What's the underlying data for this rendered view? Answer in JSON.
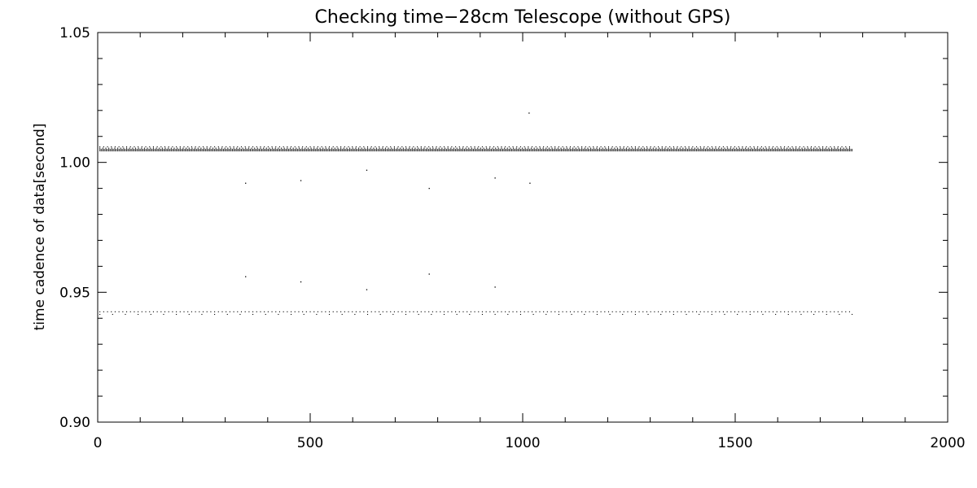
{
  "chart_data": {
    "type": "scatter",
    "title": "Checking time−28cm Telescope (without GPS)",
    "xlabel": "",
    "ylabel": "time cadence of data[second]",
    "xlim": [
      0,
      2000
    ],
    "ylim": [
      0.9,
      1.05
    ],
    "x_ticks": [
      0,
      500,
      1000,
      1500,
      2000
    ],
    "x_tick_labels": [
      "0",
      "500",
      "1000",
      "1500",
      "2000"
    ],
    "y_ticks": [
      0.9,
      0.95,
      1.0,
      1.05
    ],
    "y_tick_labels": [
      "0.90",
      "0.95",
      "1.00",
      "1.05"
    ],
    "grid": false,
    "legend": "none",
    "marker_color": "#000000",
    "series": [
      {
        "values_description": "points are listed below as x,y pairs",
        "bands": [
          {
            "y": 1.006,
            "x_start": 5,
            "x_end": 1775,
            "step": 9
          },
          {
            "y": 1.0055,
            "x_start": 5,
            "x_end": 1775,
            "step": 7
          },
          {
            "y": 1.005,
            "x_start": 5,
            "x_end": 1775,
            "step": 3
          },
          {
            "y": 1.0045,
            "x_start": 5,
            "x_end": 1775,
            "step": 3
          },
          {
            "y": 0.9425,
            "x_start": 5,
            "x_end": 1775,
            "step": 9
          },
          {
            "y": 0.9415,
            "x_start": 5,
            "x_end": 1775,
            "step": 30
          }
        ],
        "points": [
          [
            348,
            0.992
          ],
          [
            478,
            0.993
          ],
          [
            633,
            0.997
          ],
          [
            780,
            0.99
          ],
          [
            935,
            0.994
          ],
          [
            1015,
            1.019
          ],
          [
            1017,
            0.992
          ],
          [
            348,
            0.956
          ],
          [
            478,
            0.954
          ],
          [
            633,
            0.951
          ],
          [
            780,
            0.957
          ],
          [
            935,
            0.952
          ]
        ]
      }
    ]
  }
}
